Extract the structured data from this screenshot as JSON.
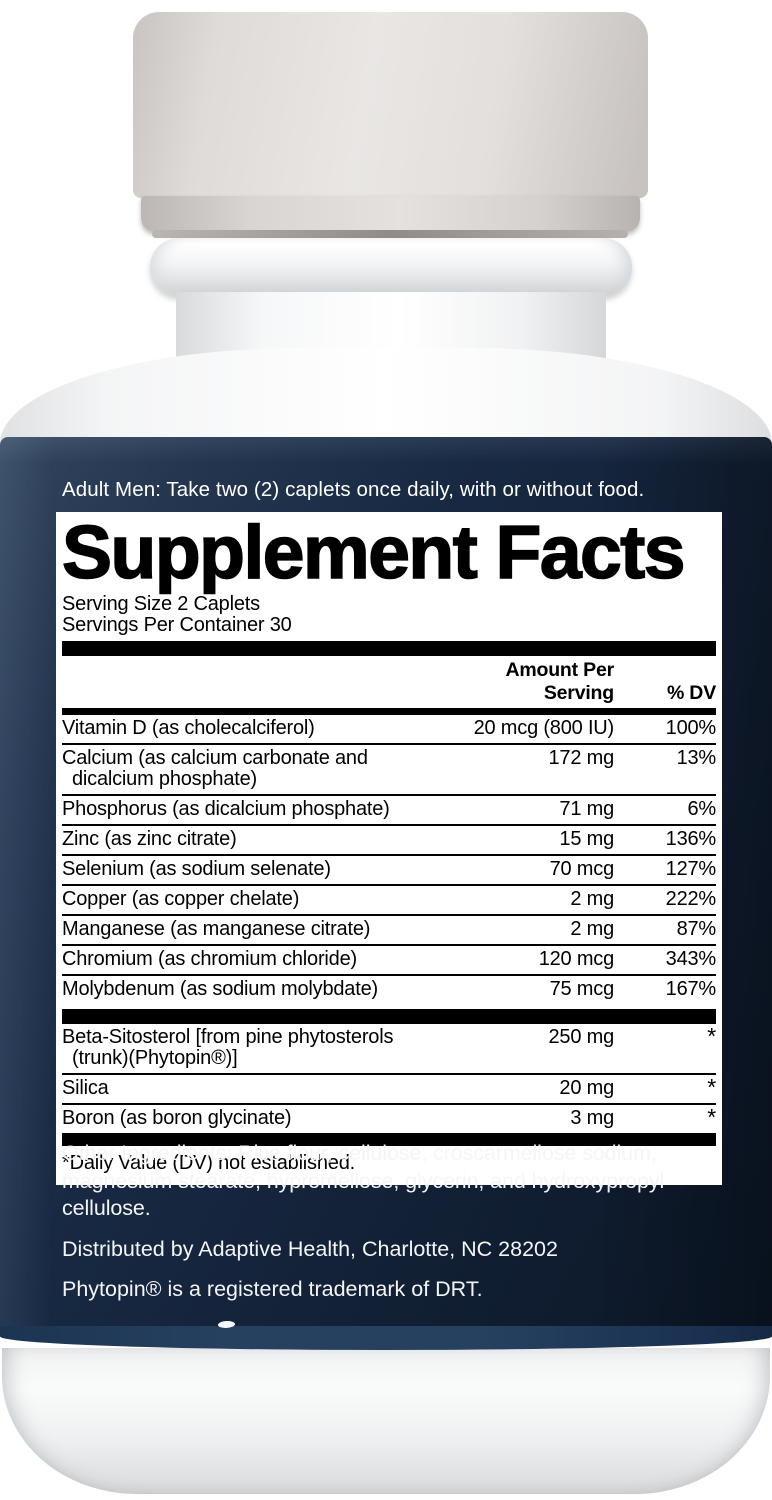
{
  "label": {
    "directions": "Adult Men: Take two (2) caplets once daily, with or without food.",
    "other_ingredients": "Other Ingredients: Rice flour, cellulose, croscarmellose sodium, magnesium stearate, hypromellose, glycerin, and hydroxypropyl cellulose.",
    "distributor": "Distributed by Adaptive Health, Charlotte, NC 28202",
    "trademark": "Phytopin® is a registered trademark of DRT."
  },
  "facts": {
    "title": "Supplement Facts",
    "serving_size": "Serving Size 2 Caplets",
    "servings_per_container": "Servings Per Container 30",
    "columns": {
      "amount": "Amount Per Serving",
      "dv": "% DV"
    },
    "rows": [
      {
        "name": "Vitamin D (as cholecalciferol)",
        "amount": "20 mcg (800 IU)",
        "dv": "100%"
      },
      {
        "name": "Calcium (as calcium carbonate and",
        "name2": "dicalcium phosphate)",
        "amount": "172 mg",
        "dv": "13%"
      },
      {
        "name": "Phosphorus (as dicalcium phosphate)",
        "amount": "71 mg",
        "dv": "6%"
      },
      {
        "name": "Zinc (as zinc citrate)",
        "amount": "15 mg",
        "dv": "136%"
      },
      {
        "name": "Selenium (as sodium selenate)",
        "amount": "70 mcg",
        "dv": "127%"
      },
      {
        "name": "Copper (as copper chelate)",
        "amount": "2 mg",
        "dv": "222%"
      },
      {
        "name": "Manganese (as manganese citrate)",
        "amount": "2 mg",
        "dv": "87%"
      },
      {
        "name": "Chromium (as chromium chloride)",
        "amount": "120 mcg",
        "dv": "343%"
      },
      {
        "name": "Molybdenum (as sodium molybdate)",
        "amount": "75 mcg",
        "dv": "167%"
      }
    ],
    "rows_blend": [
      {
        "name": "Beta-Sitosterol [from pine phytosterols",
        "name2": "(trunk)(Phytopin®)]",
        "amount": "250 mg",
        "dv": "*"
      },
      {
        "name": "Silica",
        "amount": "20 mg",
        "dv": "*"
      },
      {
        "name": "Boron (as boron glycinate)",
        "amount": "3 mg",
        "dv": "*"
      }
    ],
    "footnote": "*Daily Value (DV) not established."
  },
  "colors": {
    "navy-light": "#33465f",
    "navy-mid": "#182943",
    "navy-dark": "#0c1828",
    "band-blue": "#264160",
    "panel-white": "#ffffff",
    "ink": "#000000"
  }
}
